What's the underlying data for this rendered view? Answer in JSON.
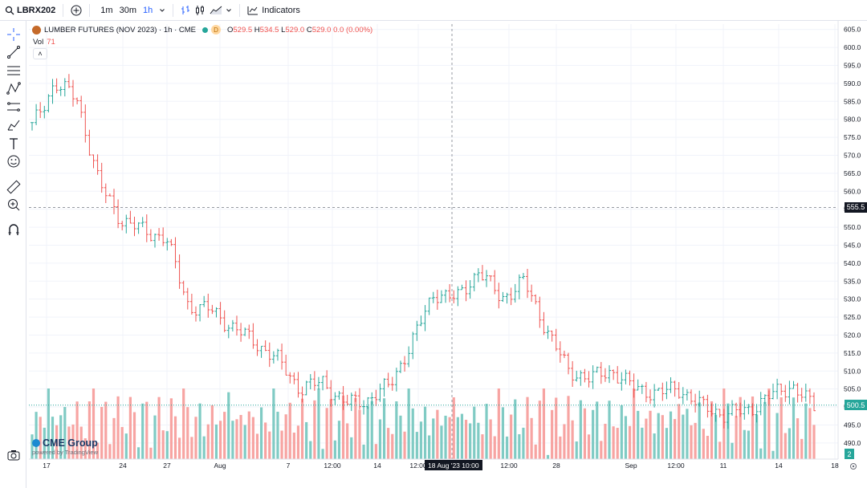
{
  "toolbar": {
    "symbol": "LBRX202",
    "timeframes": [
      "1m",
      "30m",
      "1h"
    ],
    "active_timeframe": "1h",
    "indicators_label": "Indicators"
  },
  "legend": {
    "title": "LUMBER FUTURES (NOV 2023) · 1h · CME",
    "badge": "D",
    "ohlc": [
      {
        "k": "O",
        "v": "529.5"
      },
      {
        "k": "H",
        "v": "534.5"
      },
      {
        "k": "L",
        "v": "529.0"
      },
      {
        "k": "C",
        "v": "529.0"
      }
    ],
    "change": "0.0 (0.00%)",
    "vol_label": "Vol",
    "vol_value": "71",
    "collapse": "˄"
  },
  "crosshair": {
    "price_label": "555.5",
    "time_label": "18 Aug '23  10:00"
  },
  "last_price_label": "500.5",
  "volume_badge": "2",
  "branding": {
    "name": "CME Group",
    "powered": "powered by TradingView"
  },
  "colors": {
    "up": "#26a69a",
    "down": "#ef5350",
    "up_vol": "#80cbc4",
    "down_vol": "#f7a4a2",
    "accent": "#2962ff"
  },
  "chart_data": {
    "type": "ohlc",
    "title": "LUMBER FUTURES (NOV 2023) · 1h · CME",
    "y_ticks": [
      490.0,
      495.0,
      500.0,
      505.0,
      510.0,
      515.0,
      520.0,
      525.0,
      530.0,
      535.0,
      540.0,
      545.0,
      550.0,
      555.0,
      560.0,
      565.0,
      570.0,
      575.0,
      580.0,
      585.0,
      590.0,
      595.0,
      600.0,
      605.0
    ],
    "x_ticks": [
      "17",
      "24",
      "27",
      "Aug",
      "7",
      "12:00",
      "14",
      "12:00",
      "12:00",
      "28",
      "Sep",
      "12:00",
      "11",
      "14",
      "18"
    ],
    "ylim": [
      485.5,
      606.5
    ],
    "grid": true,
    "keypoints": [
      {
        "t": "17 Jul",
        "close": 578
      },
      {
        "t": "17 Jul 12:00",
        "close": 590
      },
      {
        "t": "18 Jul",
        "close": 586
      },
      {
        "t": "21 Jul",
        "close": 562
      },
      {
        "t": "21 Jul 12:00",
        "close": 552
      },
      {
        "t": "24 Jul",
        "close": 549
      },
      {
        "t": "25 Jul",
        "close": 547
      },
      {
        "t": "26 Jul",
        "close": 528
      },
      {
        "t": "27 Jul",
        "close": 527
      },
      {
        "t": "31 Jul",
        "close": 522
      },
      {
        "t": "Aug 1",
        "close": 518
      },
      {
        "t": "3 Aug",
        "close": 513
      },
      {
        "t": "7 Aug",
        "close": 505
      },
      {
        "t": "8 Aug",
        "close": 507
      },
      {
        "t": "10 Aug",
        "close": 501
      },
      {
        "t": "14 Aug",
        "close": 502
      },
      {
        "t": "15 Aug",
        "close": 506
      },
      {
        "t": "16 Aug",
        "close": 518
      },
      {
        "t": "17 Aug",
        "close": 532
      },
      {
        "t": "18 Aug 10:00",
        "close": 530
      },
      {
        "t": "21 Aug",
        "close": 538
      },
      {
        "t": "22 Aug",
        "close": 530
      },
      {
        "t": "24 Aug",
        "close": 535
      },
      {
        "t": "25 Aug",
        "close": 522
      },
      {
        "t": "28 Aug",
        "close": 510
      },
      {
        "t": "29 Aug",
        "close": 508
      },
      {
        "t": "31 Aug",
        "close": 510
      },
      {
        "t": "Sep 1",
        "close": 505
      },
      {
        "t": "5 Sep",
        "close": 504
      },
      {
        "t": "7 Sep",
        "close": 505
      },
      {
        "t": "8 Sep",
        "close": 500
      },
      {
        "t": "11 Sep",
        "close": 498
      },
      {
        "t": "12 Sep",
        "close": 499
      },
      {
        "t": "13 Sep",
        "close": 503
      },
      {
        "t": "14 Sep",
        "close": 506
      },
      {
        "t": "15 Sep",
        "close": 500
      }
    ],
    "volume_max": 100
  }
}
